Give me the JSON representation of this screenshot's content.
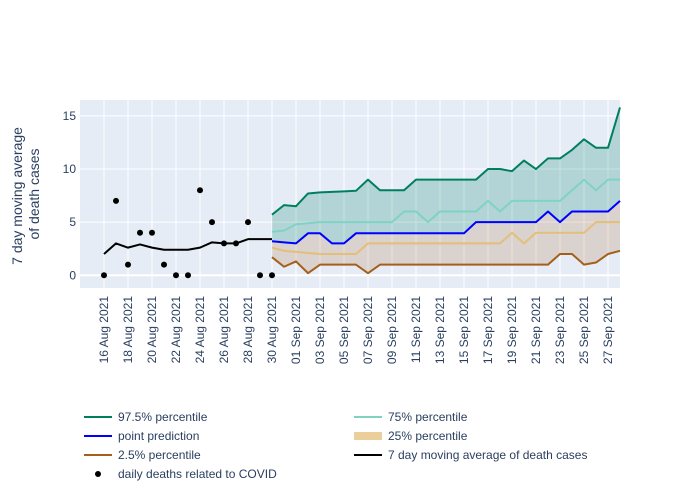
{
  "chart_data": {
    "type": "line",
    "ylabel": [
      "7 day moving average",
      "of death cases"
    ],
    "ylim": [
      -1.2,
      16.5
    ],
    "yticks": [
      0,
      5,
      10,
      15
    ],
    "x_range": [
      "2021-08-14",
      "2021-09-28"
    ],
    "x_tick_labels": [
      "16 Aug 2021",
      "18 Aug 2021",
      "20 Aug 2021",
      "22 Aug 2021",
      "24 Aug 2021",
      "26 Aug 2021",
      "28 Aug 2021",
      "30 Aug 2021",
      "01 Sep 2021",
      "03 Sep 2021",
      "05 Sep 2021",
      "07 Sep 2021",
      "09 Sep 2021",
      "11 Sep 2021",
      "13 Sep 2021",
      "15 Sep 2021",
      "17 Sep 2021",
      "19 Sep 2021",
      "21 Sep 2021",
      "23 Sep 2021",
      "25 Sep 2021",
      "27 Sep 2021"
    ],
    "x_tick_dates": [
      "2021-08-16",
      "2021-08-18",
      "2021-08-20",
      "2021-08-22",
      "2021-08-24",
      "2021-08-26",
      "2021-08-28",
      "2021-08-30",
      "2021-09-01",
      "2021-09-03",
      "2021-09-05",
      "2021-09-07",
      "2021-09-09",
      "2021-09-11",
      "2021-09-13",
      "2021-09-15",
      "2021-09-17",
      "2021-09-19",
      "2021-09-21",
      "2021-09-23",
      "2021-09-25",
      "2021-09-27"
    ],
    "daily_deaths": {
      "name": "daily deaths related to COVID",
      "color": "#000000",
      "x": [
        "2021-08-16",
        "2021-08-17",
        "2021-08-18",
        "2021-08-19",
        "2021-08-20",
        "2021-08-21",
        "2021-08-22",
        "2021-08-23",
        "2021-08-24",
        "2021-08-25",
        "2021-08-26",
        "2021-08-27",
        "2021-08-28",
        "2021-08-29",
        "2021-08-30"
      ],
      "y": [
        0,
        7,
        1,
        4,
        4,
        1,
        0,
        0,
        8,
        5,
        3,
        3,
        5,
        0,
        0
      ]
    },
    "moving_average": {
      "name": "7 day moving average of death cases",
      "color": "#000000",
      "x": [
        "2021-08-16",
        "2021-08-17",
        "2021-08-18",
        "2021-08-19",
        "2021-08-20",
        "2021-08-21",
        "2021-08-22",
        "2021-08-23",
        "2021-08-24",
        "2021-08-25",
        "2021-08-26",
        "2021-08-27",
        "2021-08-28",
        "2021-08-29",
        "2021-08-30"
      ],
      "y": [
        2.0,
        3.0,
        2.6,
        2.9,
        2.6,
        2.4,
        2.4,
        2.4,
        2.6,
        3.1,
        3.0,
        3.0,
        3.4,
        3.4,
        3.4
      ]
    },
    "forecast_x": [
      "2021-08-30",
      "2021-08-31",
      "2021-09-01",
      "2021-09-02",
      "2021-09-03",
      "2021-09-04",
      "2021-09-05",
      "2021-09-06",
      "2021-09-07",
      "2021-09-08",
      "2021-09-09",
      "2021-09-10",
      "2021-09-11",
      "2021-09-12",
      "2021-09-13",
      "2021-09-14",
      "2021-09-15",
      "2021-09-16",
      "2021-09-17",
      "2021-09-18",
      "2021-09-19",
      "2021-09-20",
      "2021-09-21",
      "2021-09-22",
      "2021-09-23",
      "2021-09-24",
      "2021-09-25",
      "2021-09-26",
      "2021-09-27",
      "2021-09-28"
    ],
    "forecast_series": [
      {
        "name": "97.5% percentile",
        "color": "#007f5f",
        "fill": "rgba(0,128,100,0.22)",
        "fill_to": "point prediction",
        "y": [
          5.7,
          6.6,
          6.5,
          7.7,
          7.8,
          7.85,
          7.9,
          7.95,
          9.0,
          8.0,
          8.0,
          8.0,
          9.0,
          9.0,
          9.0,
          9.0,
          9.0,
          9.0,
          10.0,
          10.0,
          9.8,
          10.8,
          10.0,
          11.0,
          11.0,
          11.8,
          12.8,
          12.0,
          12.0,
          15.8
        ]
      },
      {
        "name": "75% percentile",
        "color": "#7fd3c4",
        "fill": null,
        "fill_to": null,
        "y": [
          4.1,
          4.2,
          4.8,
          4.9,
          5.0,
          5.0,
          5.0,
          5.0,
          5.0,
          5.0,
          5.0,
          6.0,
          6.0,
          5.0,
          6.0,
          6.0,
          6.0,
          6.0,
          7.0,
          6.0,
          7.0,
          7.0,
          7.0,
          7.0,
          7.0,
          8.0,
          9.0,
          8.0,
          9.0,
          9.0
        ]
      },
      {
        "name": "point prediction",
        "color": "#0000ff",
        "fill": null,
        "fill_to": null,
        "y": [
          3.2,
          3.1,
          3.0,
          3.95,
          3.95,
          3.0,
          3.0,
          3.95,
          3.95,
          3.95,
          3.95,
          3.95,
          3.95,
          3.95,
          3.95,
          3.95,
          3.95,
          5.0,
          5.0,
          5.0,
          5.0,
          5.0,
          5.0,
          6.0,
          5.0,
          6.0,
          6.0,
          6.0,
          6.0,
          7.0
        ]
      },
      {
        "name": "25% percentile",
        "color": "#e3bf7a",
        "fill": null,
        "fill_to": null,
        "y": [
          2.6,
          2.3,
          2.2,
          2.1,
          2.0,
          2.0,
          2.0,
          2.0,
          3.0,
          3.0,
          3.0,
          3.0,
          3.0,
          3.0,
          3.0,
          3.0,
          3.0,
          3.0,
          3.0,
          3.0,
          4.0,
          3.0,
          4.0,
          4.0,
          4.0,
          4.0,
          4.0,
          5.0,
          5.0,
          5.0
        ]
      },
      {
        "name": "2.5% percentile",
        "color": "#a65f1a",
        "fill": "rgba(166,95,26,0.18)",
        "fill_to": "point prediction",
        "y": [
          1.7,
          0.8,
          1.3,
          0.2,
          1.0,
          1.0,
          1.0,
          1.0,
          0.2,
          1.0,
          1.0,
          1.0,
          1.0,
          1.0,
          1.0,
          1.0,
          1.0,
          1.0,
          1.0,
          1.0,
          1.0,
          1.0,
          1.0,
          1.0,
          2.0,
          2.0,
          1.0,
          1.2,
          2.0,
          2.3
        ]
      }
    ],
    "legend": {
      "position": "bottom",
      "items": [
        {
          "name": "97.5% percentile",
          "color": "#007f5f",
          "kind": "line"
        },
        {
          "name": "75% percentile",
          "color": "#7fd3c4",
          "kind": "line"
        },
        {
          "name": "point prediction",
          "color": "#0000ff",
          "kind": "line"
        },
        {
          "name": "25% percentile",
          "color": "#e3bf7a",
          "kind": "area"
        },
        {
          "name": "2.5% percentile",
          "color": "#a65f1a",
          "kind": "line"
        },
        {
          "name": "7 day moving average of death cases",
          "color": "#000000",
          "kind": "line"
        },
        {
          "name": "daily deaths related to COVID",
          "color": "#000000",
          "kind": "marker"
        }
      ]
    },
    "grid": true,
    "plot_bg": "#e5ecf6"
  }
}
